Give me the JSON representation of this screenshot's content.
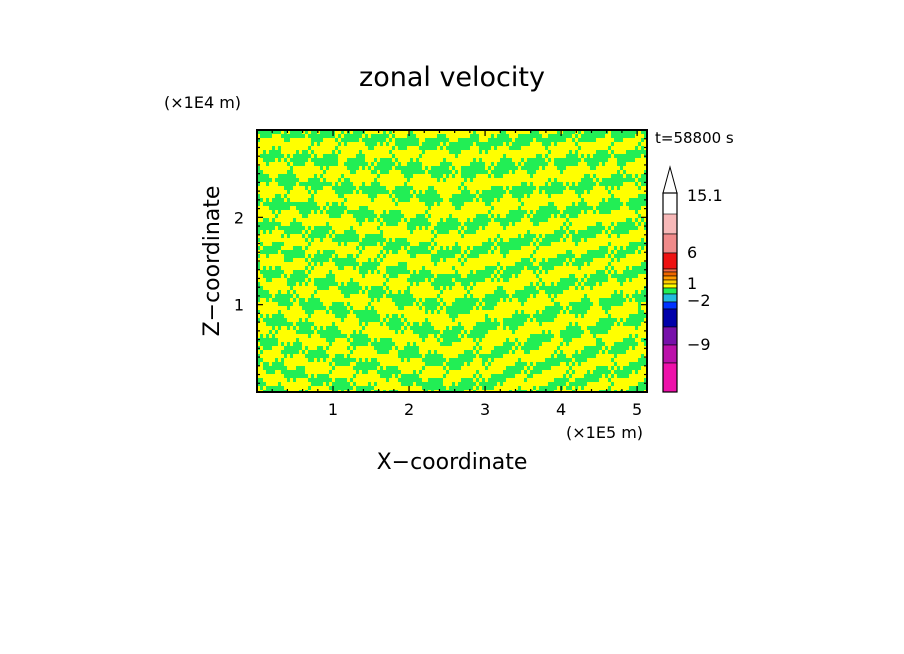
{
  "chart_data": {
    "type": "heatmap",
    "title": "zonal velocity",
    "xlabel": "X−coordinate",
    "ylabel": "Z−coordinate",
    "x_unit": "(×1E5 m)",
    "y_unit": "(×1E4 m)",
    "time_label": "t=58800 s",
    "x_range": [
      0,
      5.13
    ],
    "y_range": [
      0,
      3.0
    ],
    "x_ticks": [
      "1",
      "2",
      "3",
      "4",
      "5"
    ],
    "y_ticks": [
      "1",
      "2"
    ],
    "field_description": "alternating bands near 0, yellow (0 to 1) and green (-1 to 0)",
    "dominant_colors": {
      "positive_small": "#ffff00",
      "negative_small": "#22ee55"
    },
    "colorbar": {
      "labels": [
        "15.1",
        "6",
        "1",
        "−2",
        "−9"
      ],
      "levels_top_to_bottom": [
        {
          "color": "#ffffff"
        },
        {
          "color": "#f7b8b8"
        },
        {
          "color": "#f08a8a"
        },
        {
          "color": "#ee1111"
        },
        {
          "color": "#f46a46"
        },
        {
          "color": "#ee6600"
        },
        {
          "color": "#ff9900"
        },
        {
          "color": "#ffcc00"
        },
        {
          "color": "#ffff00"
        },
        {
          "color": "#22ee55"
        },
        {
          "color": "#22bbdd"
        },
        {
          "color": "#0033ff"
        },
        {
          "color": "#0000aa"
        },
        {
          "color": "#7711aa"
        },
        {
          "color": "#bb11aa"
        },
        {
          "color": "#ee11aa"
        }
      ]
    }
  }
}
